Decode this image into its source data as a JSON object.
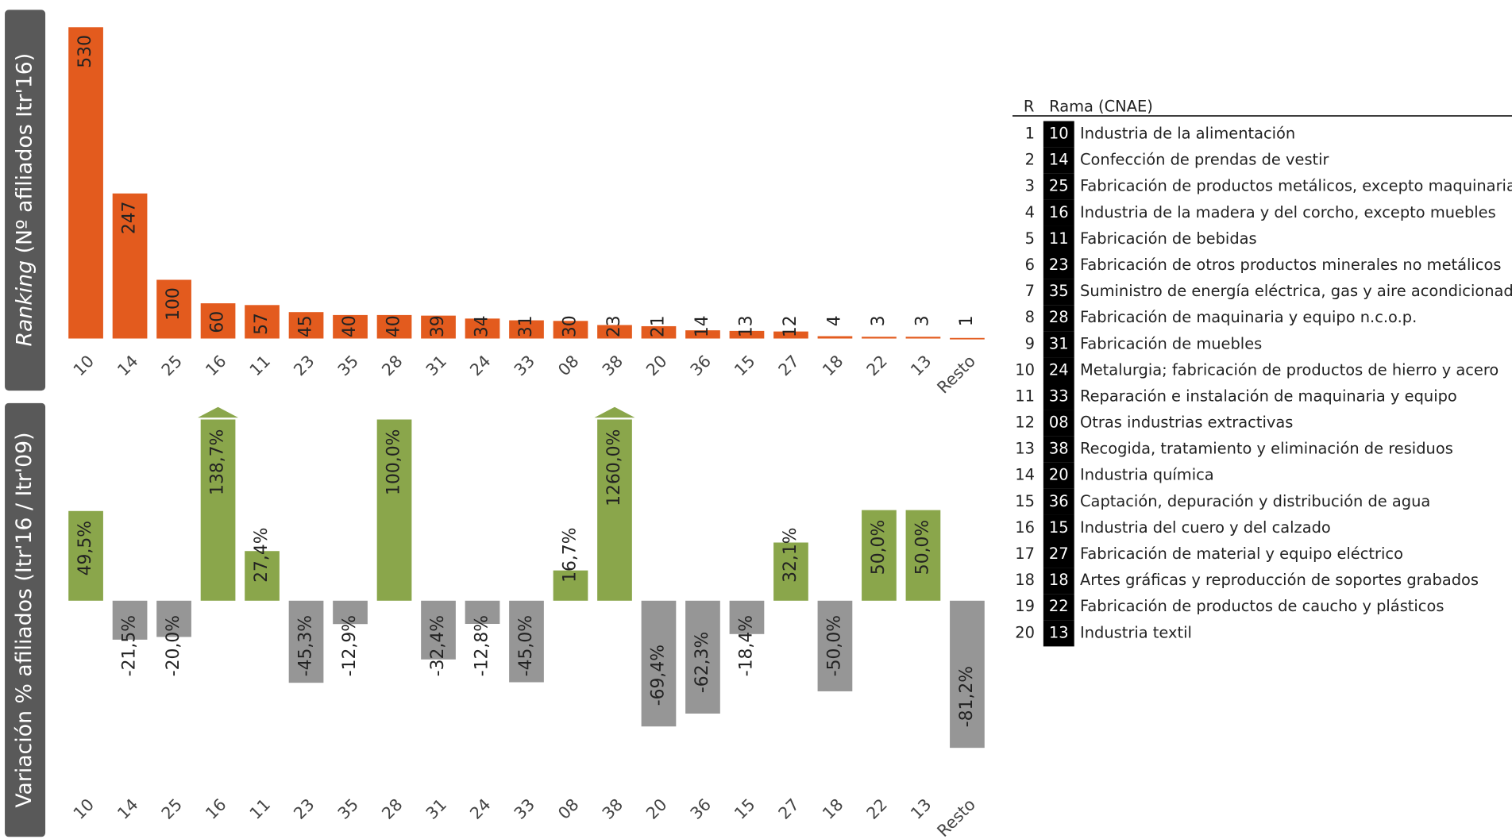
{
  "chart_data": [
    {
      "type": "bar",
      "ylabel": [
        "Ranking",
        "(Nº afiliados Itr'16)"
      ],
      "categories": [
        "10",
        "14",
        "25",
        "16",
        "11",
        "23",
        "35",
        "28",
        "31",
        "24",
        "33",
        "08",
        "38",
        "20",
        "36",
        "15",
        "27",
        "18",
        "22",
        "13",
        "Resto"
      ],
      "values": [
        530,
        247,
        100,
        60,
        57,
        45,
        40,
        40,
        39,
        34,
        31,
        30,
        23,
        21,
        14,
        13,
        12,
        4,
        3,
        3,
        1
      ],
      "color": "#e35b1e",
      "ylim": [
        0,
        530
      ]
    },
    {
      "type": "bar",
      "ylabel": "Variación % afiliados (Itr'16 / Itr'09)",
      "categories": [
        "10",
        "14",
        "25",
        "16",
        "11",
        "23",
        "35",
        "28",
        "31",
        "24",
        "33",
        "08",
        "38",
        "20",
        "36",
        "15",
        "27",
        "18",
        "22",
        "13",
        "Resto"
      ],
      "values": [
        49.5,
        -21.5,
        -20.0,
        138.7,
        27.4,
        -45.3,
        -12.9,
        100.0,
        -32.4,
        -12.8,
        -45.0,
        16.7,
        1260.0,
        -69.4,
        -62.3,
        -18.4,
        32.1,
        -50.0,
        50.0,
        50.0,
        -81.2
      ],
      "value_labels": [
        "49,5%",
        "-21,5%",
        "-20,0%",
        "138,7%",
        "27,4%",
        "-45,3%",
        "-12,9%",
        "100,0%",
        "-32,4%",
        "-12,8%",
        "-45,0%",
        "16,7%",
        "1260,0%",
        "-69,4%",
        "-62,3%",
        "-18,4%",
        "32,1%",
        "-50,0%",
        "50,0%",
        "50,0%",
        "-81,2%"
      ],
      "colors": {
        "positive": "#8aa64b",
        "negative": "#969696"
      },
      "ylim": [
        -100,
        100
      ]
    }
  ],
  "table": {
    "header": [
      "R",
      "Rama (CNAE)"
    ],
    "rows": [
      [
        "1",
        "10",
        "Industria de la alimentación"
      ],
      [
        "2",
        "14",
        "Confección de prendas de vestir"
      ],
      [
        "3",
        "25",
        "Fabricación de productos metálicos, excepto maquinaria"
      ],
      [
        "4",
        "16",
        "Industria de la madera y del corcho, excepto muebles"
      ],
      [
        "5",
        "11",
        "Fabricación de bebidas"
      ],
      [
        "6",
        "23",
        "Fabricación de otros productos minerales no metálicos"
      ],
      [
        "7",
        "35",
        "Suministro de energía eléctrica, gas y aire acondicionado"
      ],
      [
        "8",
        "28",
        "Fabricación de maquinaria y equipo n.c.o.p."
      ],
      [
        "9",
        "31",
        "Fabricación de muebles"
      ],
      [
        "10",
        "24",
        "Metalurgia; fabricación de productos de hierro y acero"
      ],
      [
        "11",
        "33",
        "Reparación e instalación de maquinaria y equipo"
      ],
      [
        "12",
        "08",
        "Otras industrias extractivas"
      ],
      [
        "13",
        "38",
        "Recogida, tratamiento y eliminación de residuos"
      ],
      [
        "14",
        "20",
        "Industria química"
      ],
      [
        "15",
        "36",
        "Captación, depuración y distribución de agua"
      ],
      [
        "16",
        "15",
        "Industria del cuero y del calzado"
      ],
      [
        "17",
        "27",
        "Fabricación de material y equipo eléctrico"
      ],
      [
        "18",
        "18",
        "Artes gráficas y reproducción de soportes grabados"
      ],
      [
        "19",
        "22",
        "Fabricación de productos de caucho y plásticos"
      ],
      [
        "20",
        "13",
        "Industria textil"
      ]
    ]
  }
}
